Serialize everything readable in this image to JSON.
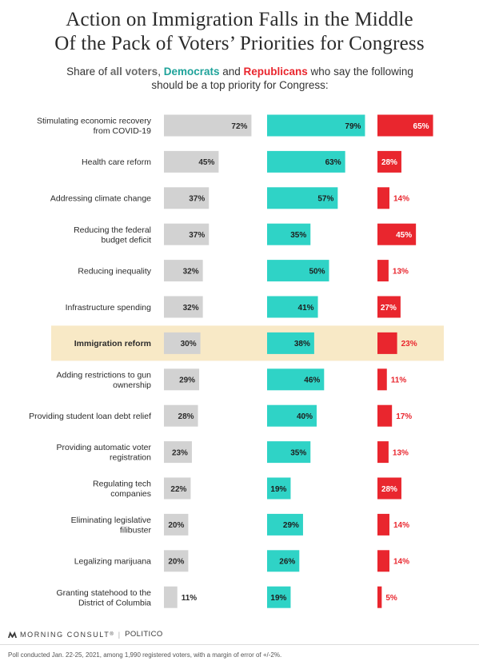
{
  "title_line1": "Action on Immigration Falls in the Middle",
  "title_line2": "Of the Pack of Voters’ Priorities for Congress",
  "subtitle": {
    "part1": "Share of ",
    "all_voters": "all voters",
    "part2": ", ",
    "democrats": "Democrats",
    "part3": " and ",
    "republicans": "Republicans",
    "part4": " who say the following",
    "line2": "should be a top priority for Congress:"
  },
  "colors": {
    "all_voters": "#d2d2d2",
    "democrats": "#2fd3c6",
    "republicans": "#e9262e",
    "highlight": "#f8e9c6",
    "democrats_text": "#1fa39a",
    "republicans_text": "#e9262e"
  },
  "chart_data": {
    "type": "bar",
    "orientation": "horizontal",
    "unit": "%",
    "highlighted_category": "Immigration reform",
    "categories": [
      [
        "Stimulating economic recovery",
        "from COVID-19"
      ],
      [
        "Health care reform"
      ],
      [
        "Addressing climate change"
      ],
      [
        "Reducing the federal",
        "budget deficit"
      ],
      [
        "Reducing inequality"
      ],
      [
        "Infrastructure spending"
      ],
      [
        "Immigration reform"
      ],
      [
        "Adding restrictions to gun",
        "ownership"
      ],
      [
        "Providing student loan debt relief"
      ],
      [
        "Providing automatic voter",
        "registration"
      ],
      [
        "Regulating tech",
        "companies"
      ],
      [
        "Eliminating legislative",
        "filibuster"
      ],
      [
        "Legalizing marijuana"
      ],
      [
        "Granting statehood to the",
        "District of Columbia"
      ]
    ],
    "series": [
      {
        "name": "all voters",
        "values": [
          72,
          45,
          37,
          37,
          32,
          32,
          30,
          29,
          28,
          23,
          22,
          20,
          20,
          11
        ]
      },
      {
        "name": "Democrats",
        "values": [
          79,
          63,
          57,
          35,
          50,
          41,
          38,
          46,
          40,
          35,
          19,
          29,
          26,
          19
        ]
      },
      {
        "name": "Republicans",
        "values": [
          65,
          28,
          14,
          45,
          13,
          27,
          23,
          11,
          17,
          13,
          28,
          14,
          14,
          5
        ]
      }
    ]
  },
  "footer": {
    "brand": "MORNING CONSULT",
    "trademark": "®",
    "separator": "|",
    "publisher": "POLITICO",
    "note": "Poll conducted Jan. 22-25, 2021, among 1,990 registered voters, with a margin of error of +/-2%."
  }
}
